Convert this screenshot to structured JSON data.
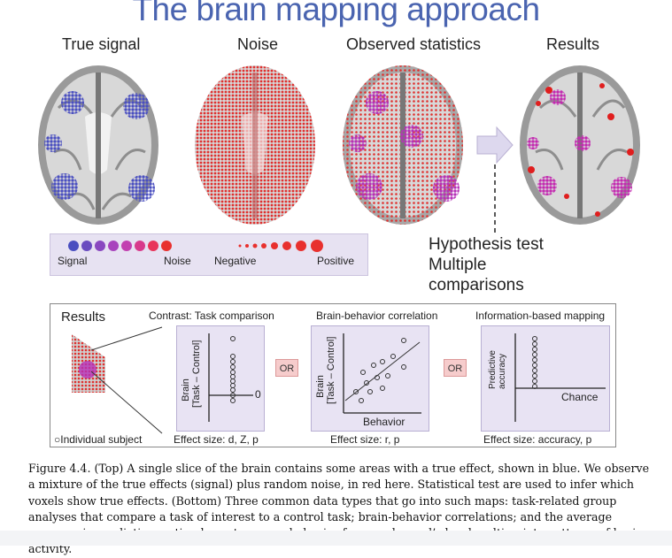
{
  "title": "The brain mapping approach",
  "panels": {
    "true_signal": "True signal",
    "noise": "Noise",
    "observed": "Observed statistics",
    "results": "Results"
  },
  "legend": {
    "signal": "Signal",
    "noise": "Noise",
    "negative": "Negative",
    "positive": "Positive"
  },
  "hypothesis": {
    "line1": "Hypothesis test",
    "line2": "Multiple",
    "line3": "comparisons"
  },
  "bottom": {
    "results_label": "Results",
    "individual_subject": "Individual subject",
    "contrast_title": "Contrast: Task comparison",
    "contrast_ylabel1": "Brain",
    "contrast_ylabel2": "[Task – Control]",
    "contrast_zero": "0",
    "contrast_effect": "Effect size: d, Z, p",
    "or1": "OR",
    "correlation_title": "Brain-behavior correlation",
    "correlation_ylabel1": "Brain",
    "correlation_ylabel2": "[Task – Control]",
    "correlation_xlabel": "Behavior",
    "correlation_effect": "Effect size: r, p",
    "or2": "OR",
    "info_title": "Information-based mapping",
    "info_ylabel1": "Predictive",
    "info_ylabel2": "accuracy",
    "info_chance": "Chance",
    "info_effect": "Effect size: accuracy, p"
  },
  "caption": "Figure 4.4. (Top) A single slice of the brain contains some areas with a true effect, shown in blue. We observe a mixture of the true effects (signal) plus random noise, in red here. Statistical test are used to infer which voxels show true effects. (Bottom) Three common data types that go into such maps: task-related group analyses that compare a task of interest to a control task; brain-behavior correlations; and the average accuracy in predicting a stimulus category or behavior from each voxel’s local multivariate patterns of brain activity."
}
